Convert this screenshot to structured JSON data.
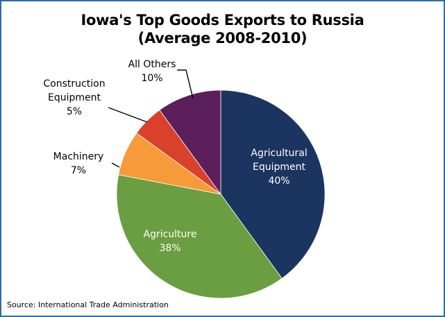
{
  "title_line1": "Iowa's Top Goods Exports to Russia",
  "title_line2": "(Average 2008-2010)",
  "source": "Source: International Trade Administration",
  "chart_data": {
    "type": "pie",
    "title": "Iowa's Top Goods Exports to Russia (Average 2008-2010)",
    "slices": [
      {
        "label": [
          "Agricultural",
          "Equipment"
        ],
        "pct_label": "40%",
        "value": 40,
        "color": "#1c3460"
      },
      {
        "label": [
          "Agriculture"
        ],
        "pct_label": "38%",
        "value": 38,
        "color": "#6a9e40"
      },
      {
        "label": [
          "Machinery"
        ],
        "pct_label": "7%",
        "value": 7,
        "color": "#f79b3a"
      },
      {
        "label": [
          "Construction",
          "Equipment"
        ],
        "pct_label": "5%",
        "value": 5,
        "color": "#d9412a"
      },
      {
        "label": [
          "All Others"
        ],
        "pct_label": "10%",
        "value": 10,
        "color": "#5c1f5c"
      }
    ],
    "label_color_inside": "#ffffff",
    "label_color_outside": "#000000"
  }
}
